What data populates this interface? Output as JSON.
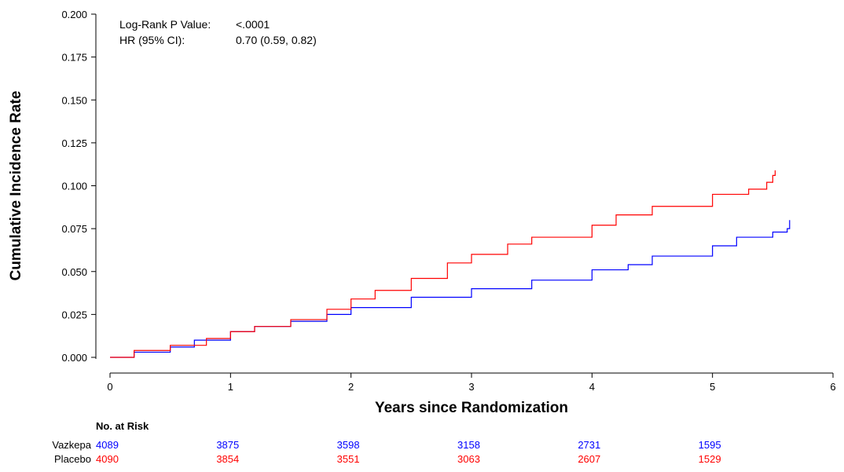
{
  "chart_data": {
    "type": "line",
    "xlabel": "Years since Randomization",
    "ylabel": "Cumulative Incidence Rate",
    "xlim": [
      0,
      6
    ],
    "ylim": [
      0,
      0.2
    ],
    "x_ticks": [
      "0",
      "1",
      "2",
      "3",
      "4",
      "5",
      "6"
    ],
    "y_ticks": [
      "0.000",
      "0.025",
      "0.050",
      "0.075",
      "0.100",
      "0.125",
      "0.150",
      "0.175",
      "0.200"
    ],
    "grid": false,
    "annotations": {
      "logrank_label": "Log-Rank P Value:",
      "logrank_value": "<.0001",
      "hr_label": "HR (95% CI):",
      "hr_value": "0.70 (0.59, 0.82)"
    },
    "series": [
      {
        "name": "Vazkepa",
        "color": "#0000ff",
        "points": [
          [
            0,
            0
          ],
          [
            0.2,
            0.003
          ],
          [
            0.5,
            0.006
          ],
          [
            0.7,
            0.01
          ],
          [
            1.0,
            0.015
          ],
          [
            1.2,
            0.018
          ],
          [
            1.5,
            0.021
          ],
          [
            1.8,
            0.025
          ],
          [
            2.0,
            0.029
          ],
          [
            2.5,
            0.035
          ],
          [
            3.0,
            0.04
          ],
          [
            3.5,
            0.045
          ],
          [
            4.0,
            0.051
          ],
          [
            4.3,
            0.054
          ],
          [
            4.5,
            0.059
          ],
          [
            5.0,
            0.065
          ],
          [
            5.2,
            0.07
          ],
          [
            5.5,
            0.073
          ],
          [
            5.62,
            0.075
          ],
          [
            5.64,
            0.08
          ]
        ]
      },
      {
        "name": "Placebo",
        "color": "#ff0000",
        "points": [
          [
            0,
            0
          ],
          [
            0.2,
            0.004
          ],
          [
            0.5,
            0.007
          ],
          [
            0.8,
            0.011
          ],
          [
            1.0,
            0.015
          ],
          [
            1.2,
            0.018
          ],
          [
            1.5,
            0.022
          ],
          [
            1.8,
            0.028
          ],
          [
            2.0,
            0.034
          ],
          [
            2.2,
            0.039
          ],
          [
            2.5,
            0.046
          ],
          [
            2.8,
            0.055
          ],
          [
            3.0,
            0.06
          ],
          [
            3.3,
            0.066
          ],
          [
            3.5,
            0.07
          ],
          [
            4.0,
            0.077
          ],
          [
            4.2,
            0.083
          ],
          [
            4.5,
            0.088
          ],
          [
            5.0,
            0.095
          ],
          [
            5.3,
            0.098
          ],
          [
            5.45,
            0.102
          ],
          [
            5.5,
            0.106
          ],
          [
            5.52,
            0.109
          ]
        ]
      }
    ],
    "risk_table": {
      "header": "No. at Risk",
      "rows": [
        {
          "label": "Vazkepa",
          "color": "#0000ff",
          "values": [
            "4089",
            "3875",
            "3598",
            "3158",
            "2731",
            "1595"
          ]
        },
        {
          "label": "Placebo",
          "color": "#ff0000",
          "values": [
            "4090",
            "3854",
            "3551",
            "3063",
            "2607",
            "1529"
          ]
        }
      ]
    }
  }
}
